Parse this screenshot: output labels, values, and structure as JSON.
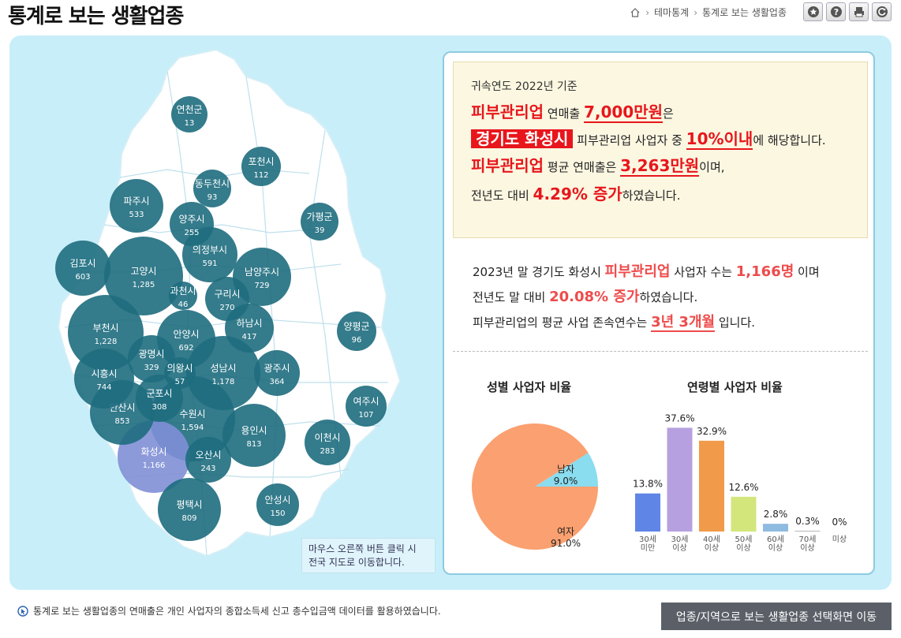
{
  "header": {
    "title": "통계로 보는 생활업종",
    "breadcrumb": [
      "테마통계",
      "통계로 보는 생활업종"
    ],
    "tools": [
      "star-icon",
      "help-icon",
      "print-icon",
      "refresh-icon"
    ]
  },
  "map": {
    "hint_line1": "마우스 오른쪽 버튼 클릭 시",
    "hint_line2": "전국 지도로 이동합니다.",
    "highlight_color": "#7f8fd6",
    "bubble_color": "#1e6d7e",
    "regions": [
      {
        "name": "연천군",
        "value": "13"
      },
      {
        "name": "포천시",
        "value": "112"
      },
      {
        "name": "동두천시",
        "value": "93"
      },
      {
        "name": "파주시",
        "value": "533"
      },
      {
        "name": "양주시",
        "value": "255"
      },
      {
        "name": "가평군",
        "value": "39"
      },
      {
        "name": "의정부시",
        "value": "591"
      },
      {
        "name": "김포시",
        "value": "603"
      },
      {
        "name": "고양시",
        "value": "1,285"
      },
      {
        "name": "남양주시",
        "value": "729"
      },
      {
        "name": "과천시",
        "value": "46"
      },
      {
        "name": "구리시",
        "value": "270"
      },
      {
        "name": "부천시",
        "value": "1,228"
      },
      {
        "name": "안양시",
        "value": "692"
      },
      {
        "name": "하남시",
        "value": "417"
      },
      {
        "name": "양평군",
        "value": "96"
      },
      {
        "name": "광명시",
        "value": "329"
      },
      {
        "name": "시흥시",
        "value": "744"
      },
      {
        "name": "의왕시",
        "value": "57"
      },
      {
        "name": "성남시",
        "value": "1,178"
      },
      {
        "name": "광주시",
        "value": "364"
      },
      {
        "name": "군포시",
        "value": "308"
      },
      {
        "name": "안산시",
        "value": "853"
      },
      {
        "name": "수원시",
        "value": "1,594"
      },
      {
        "name": "여주시",
        "value": "107"
      },
      {
        "name": "용인시",
        "value": "813"
      },
      {
        "name": "이천시",
        "value": "283"
      },
      {
        "name": "화성시",
        "value": "1,166"
      },
      {
        "name": "오산시",
        "value": "243"
      },
      {
        "name": "평택시",
        "value": "809"
      },
      {
        "name": "안성시",
        "value": "150"
      }
    ]
  },
  "summary": {
    "basis": "귀속연도 2022년 기준",
    "industry": "피부관리업",
    "sales_label": " 연매출 ",
    "sales_value": "7,000만원",
    "suffix_eun": "은",
    "region": "경기도 화성시",
    "mid_text": " 피부관리업 사업자 중 ",
    "rank": "10%이내",
    "rank_suffix": "에 해당합니다.",
    "avg_label": " 평균 연매출은 ",
    "avg_value": "3,263만원",
    "avg_suffix": "이며,",
    "yoy_prefix": "전년도 대비 ",
    "yoy_value": "4.29% 증가",
    "yoy_suffix": "하였습니다."
  },
  "stats": {
    "l1_prefix": "2023년 말 경기도 화성시 ",
    "l1_industry": "피부관리업",
    "l1_mid": " 사업자 수는 ",
    "l1_count": "1,166명",
    "l1_suffix": " 이며",
    "l2_prefix": "전년도 말 대비 ",
    "l2_value": "20.08% 증가",
    "l2_suffix": "하였습니다.",
    "l3_prefix": "피부관리업의 평균 사업 존속연수는 ",
    "l3_value": "3년 3개월",
    "l3_suffix": " 입니다."
  },
  "gender_title": "성별 사업자 비율",
  "age_title": "연령별 사업자 비율",
  "chart_data": [
    {
      "type": "pie",
      "title": "성별 사업자 비율",
      "categories": [
        "남자",
        "여자"
      ],
      "values": [
        9.0,
        91.0
      ],
      "labels": [
        "9.0%",
        "91.0%"
      ],
      "colors": [
        "#8adcef",
        "#fba070"
      ]
    },
    {
      "type": "bar",
      "title": "연령별 사업자 비율",
      "categories": [
        [
          "30세",
          "미만"
        ],
        [
          "30세",
          "이상"
        ],
        [
          "40세",
          "이상"
        ],
        [
          "50세",
          "이상"
        ],
        [
          "60세",
          "이상"
        ],
        [
          "70세",
          "이상"
        ],
        [
          "미상"
        ]
      ],
      "values": [
        13.8,
        37.6,
        32.9,
        12.6,
        2.8,
        0.3,
        0
      ],
      "labels": [
        "13.8%",
        "37.6%",
        "32.9%",
        "12.6%",
        "2.8%",
        "0.3%",
        "0%"
      ],
      "colors": [
        "#5f85e6",
        "#b7a0e0",
        "#f19a4a",
        "#d3e67c",
        "#8fbbe0",
        "#b9b9b9",
        "#cccccc"
      ],
      "ylim": [
        0,
        40
      ]
    }
  ],
  "footer": {
    "note": "통계로 보는 생활업종의 연매출은 개인 사업자의 종합소득세 신고 총수입금액 데이터를 활용하였습니다.",
    "button": "업종/지역으로 보는 생활업종 선택화면 이동"
  }
}
